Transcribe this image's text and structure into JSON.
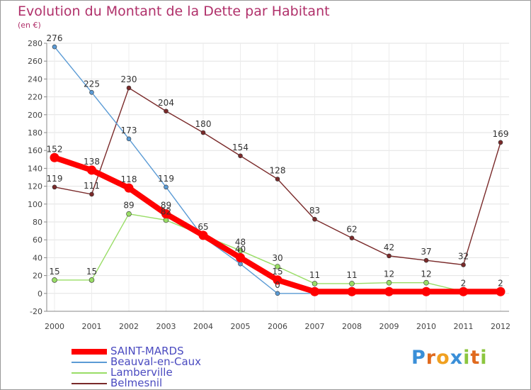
{
  "chart_data": {
    "type": "line",
    "title": "Evolution du Montant de la Dette par Habitant",
    "subtitle": "(en €)",
    "categories": [
      "2000",
      "2001",
      "2002",
      "2003",
      "2004",
      "2005",
      "2006",
      "2007",
      "2008",
      "2009",
      "2010",
      "2011",
      "2012"
    ],
    "ylim": [
      -20,
      280
    ],
    "yticks": [
      -20,
      0,
      20,
      40,
      60,
      80,
      100,
      120,
      140,
      160,
      180,
      200,
      220,
      240,
      260,
      280
    ],
    "grid": true,
    "legend_position": "bottom-left",
    "series": [
      {
        "name": "SAINT-MARDS",
        "color": "#ff0000",
        "values": [
          152,
          138,
          118,
          89,
          65,
          40,
          15,
          2,
          2,
          2,
          2,
          2,
          2
        ],
        "labels": [
          "152",
          "138",
          "118",
          "89",
          "65",
          "40",
          "15",
          "",
          "",
          "",
          "",
          "",
          ""
        ]
      },
      {
        "name": "Beauval-en-Caux",
        "color": "#5b9bd5",
        "values": [
          276,
          225,
          173,
          119,
          63,
          33,
          0,
          0,
          0,
          0,
          0,
          0,
          0
        ],
        "labels": [
          "276",
          "225",
          "173",
          "119",
          "",
          "",
          "0",
          "",
          "",
          "",
          "",
          "",
          ""
        ]
      },
      {
        "name": "Lamberville",
        "color": "#99dd66",
        "values": [
          15,
          15,
          89,
          82,
          65,
          48,
          30,
          11,
          11,
          12,
          12,
          2,
          2
        ],
        "labels": [
          "15",
          "15",
          "89",
          "82",
          "",
          "48",
          "30",
          "11",
          "11",
          "12",
          "12",
          "2",
          "2"
        ]
      },
      {
        "name": "Belmesnil",
        "color": "#7a2a2a",
        "values": [
          119,
          111,
          230,
          204,
          180,
          154,
          128,
          83,
          62,
          42,
          37,
          32,
          169
        ],
        "labels": [
          "119",
          "111",
          "230",
          "204",
          "180",
          "154",
          "128",
          "83",
          "62",
          "42",
          "37",
          "32",
          "169"
        ]
      }
    ]
  },
  "branding": {
    "logo_text": "Proxiti"
  }
}
